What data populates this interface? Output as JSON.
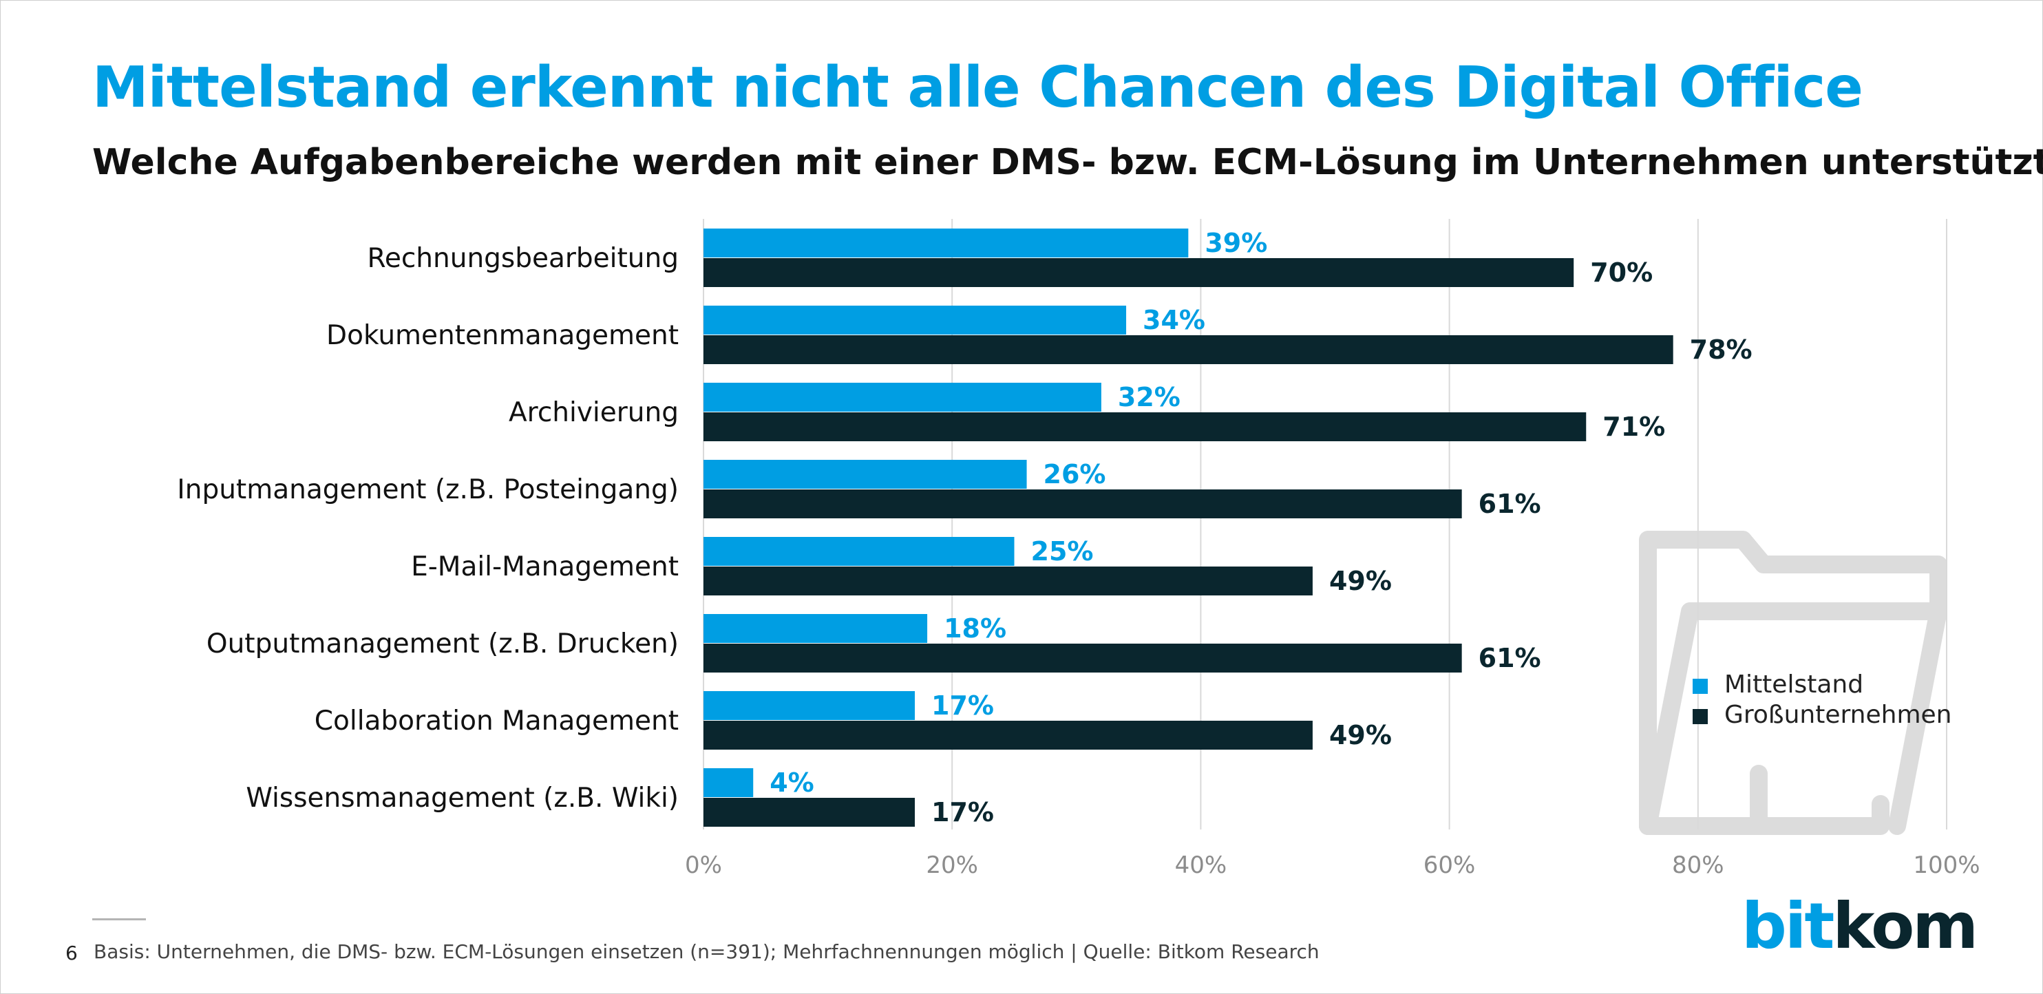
{
  "page": {
    "title": "Mittelstand erkennt nicht alle Chancen des Digital Office",
    "subtitle": "Welche Aufgabenbereiche werden mit einer DMS- bzw. ECM-Lösung im Unternehmen unterstützt?",
    "page_number": "6",
    "footnote": "Basis: Unternehmen, die DMS- bzw. ECM-Lösungen einsetzen (n=391); Mehrfachnennungen möglich | Quelle: Bitkom Research",
    "logo": {
      "part1": "bit",
      "part2": "kom"
    }
  },
  "colors": {
    "mittelstand": "#009ee3",
    "grossunternehmen": "#0a262e",
    "title": "#009ee3",
    "grid": "#d9d9d9",
    "tick_text": "#8c8c8c",
    "folder_icon": "#dcdcdc"
  },
  "icons": [
    "folder-icon",
    "bar-legend-square"
  ],
  "chart_data": {
    "type": "bar",
    "orientation": "horizontal",
    "categories": [
      "Rechnungsbearbeitung",
      "Dokumentenmanagement",
      "Archivierung",
      "Inputmanagement (z.B. Posteingang)",
      "E-Mail-Management",
      "Outputmanagement (z.B. Drucken)",
      "Collaboration Management",
      "Wissensmanagement (z.B. Wiki)"
    ],
    "series": [
      {
        "name": "Mittelstand",
        "values": [
          39,
          34,
          32,
          26,
          25,
          18,
          17,
          4
        ]
      },
      {
        "name": "Großunternehmen",
        "values": [
          70,
          78,
          71,
          61,
          49,
          61,
          49,
          17
        ]
      }
    ],
    "value_suffix": "%",
    "xlim": [
      0,
      100
    ],
    "xticks": [
      0,
      20,
      40,
      60,
      80,
      100
    ],
    "xtick_labels": [
      "0%",
      "20%",
      "40%",
      "60%",
      "80%",
      "100%"
    ],
    "grid": true,
    "legend_position": "right"
  }
}
